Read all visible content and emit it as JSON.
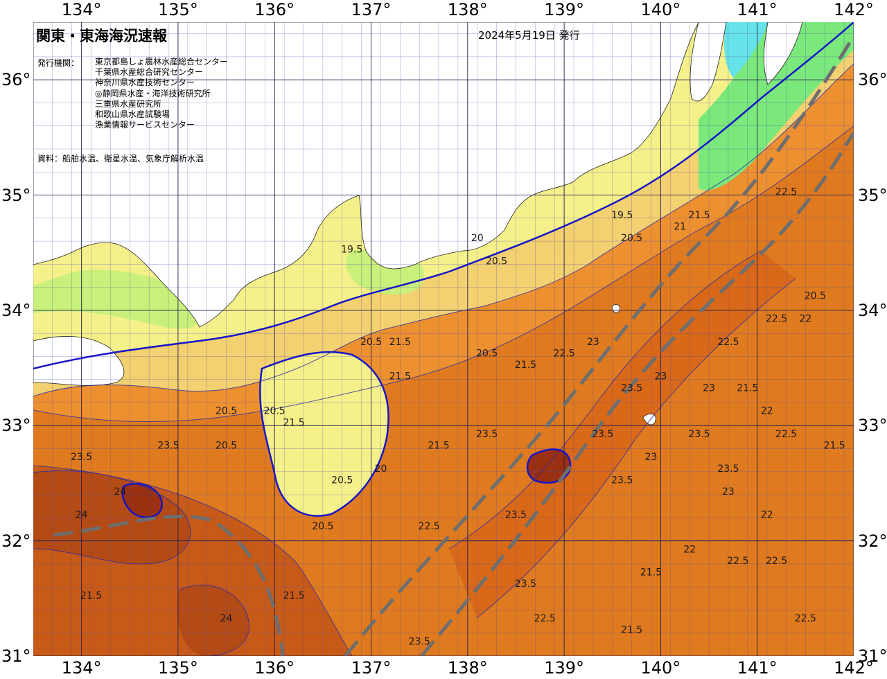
{
  "title": "関東・東海海況速報",
  "issue_date": "2024年5月19日 発行",
  "institutions_label": "発行機関：",
  "institutions": [
    "東京都島しょ農林水産総合センター",
    "千葉県水産総合研究センター",
    "神奈川県水産技術センター",
    "◎静岡県水産・海洋技術研究所",
    "三重県水産研究所",
    "和歌山県水産試験場",
    "漁業情報サービスセンター"
  ],
  "source": "資料：船舶水温、衛星水温、気象庁解析水温",
  "longitude_labels": [
    "134°",
    "135°",
    "136°",
    "137°",
    "138°",
    "139°",
    "140°",
    "141°",
    "142°"
  ],
  "latitude_labels": [
    "36°",
    "35°",
    "34°",
    "33°",
    "32°",
    "31°"
  ],
  "map_extent": {
    "lon_min": 133.5,
    "lon_max": 142.0,
    "lat_min": 31.0,
    "lat_max": 36.5
  },
  "kuroshio_path_description": "dashed gray lines",
  "temperature_labels": [
    {
      "lon": 139.6,
      "lat": 34.8,
      "text": "19.5"
    },
    {
      "lon": 139.7,
      "lat": 34.6,
      "text": "20.5"
    },
    {
      "lon": 138.1,
      "lat": 34.6,
      "text": "20"
    },
    {
      "lon": 138.3,
      "lat": 34.4,
      "text": "20.5"
    },
    {
      "lon": 136.8,
      "lat": 34.5,
      "text": "19.5"
    },
    {
      "lon": 140.2,
      "lat": 34.7,
      "text": "21"
    },
    {
      "lon": 140.4,
      "lat": 34.8,
      "text": "21.5"
    },
    {
      "lon": 141.3,
      "lat": 35.0,
      "text": "22.5"
    },
    {
      "lon": 141.6,
      "lat": 34.1,
      "text": "20.5"
    },
    {
      "lon": 141.2,
      "lat": 33.9,
      "text": "22.5"
    },
    {
      "lon": 140.7,
      "lat": 33.7,
      "text": "22.5"
    },
    {
      "lon": 139.0,
      "lat": 33.6,
      "text": "22.5"
    },
    {
      "lon": 139.3,
      "lat": 33.7,
      "text": "23"
    },
    {
      "lon": 138.6,
      "lat": 33.5,
      "text": "21.5"
    },
    {
      "lon": 138.2,
      "lat": 33.6,
      "text": "20.5"
    },
    {
      "lon": 137.0,
      "lat": 33.7,
      "text": "20.5"
    },
    {
      "lon": 137.3,
      "lat": 33.7,
      "text": "21.5"
    },
    {
      "lon": 137.3,
      "lat": 33.4,
      "text": "21.5"
    },
    {
      "lon": 136.0,
      "lat": 33.1,
      "text": "20.5"
    },
    {
      "lon": 135.5,
      "lat": 33.1,
      "text": "20.5"
    },
    {
      "lon": 135.5,
      "lat": 32.8,
      "text": "20.5"
    },
    {
      "lon": 136.2,
      "lat": 33.0,
      "text": "21.5"
    },
    {
      "lon": 136.7,
      "lat": 32.5,
      "text": "20.5"
    },
    {
      "lon": 137.1,
      "lat": 32.6,
      "text": "20"
    },
    {
      "lon": 137.7,
      "lat": 32.8,
      "text": "21.5"
    },
    {
      "lon": 138.2,
      "lat": 32.9,
      "text": "23.5"
    },
    {
      "lon": 139.4,
      "lat": 32.9,
      "text": "23.5"
    },
    {
      "lon": 139.6,
      "lat": 32.5,
      "text": "23.5"
    },
    {
      "lon": 138.5,
      "lat": 32.2,
      "text": "23.5"
    },
    {
      "lon": 137.6,
      "lat": 32.1,
      "text": "22.5"
    },
    {
      "lon": 136.5,
      "lat": 32.1,
      "text": "20.5"
    },
    {
      "lon": 134.0,
      "lat": 32.2,
      "text": "24"
    },
    {
      "lon": 134.9,
      "lat": 32.8,
      "text": "23.5"
    },
    {
      "lon": 134.0,
      "lat": 32.7,
      "text": "23.5"
    },
    {
      "lon": 134.4,
      "lat": 32.4,
      "text": "24"
    },
    {
      "lon": 134.1,
      "lat": 31.5,
      "text": "21.5"
    },
    {
      "lon": 135.5,
      "lat": 31.3,
      "text": "24"
    },
    {
      "lon": 136.2,
      "lat": 31.5,
      "text": "21.5"
    },
    {
      "lon": 137.5,
      "lat": 31.1,
      "text": "23.5"
    },
    {
      "lon": 138.6,
      "lat": 31.6,
      "text": "23.5"
    },
    {
      "lon": 138.8,
      "lat": 31.3,
      "text": "22.5"
    },
    {
      "lon": 139.7,
      "lat": 31.2,
      "text": "21.5"
    },
    {
      "lon": 139.9,
      "lat": 31.7,
      "text": "21.5"
    },
    {
      "lon": 140.3,
      "lat": 31.9,
      "text": "22"
    },
    {
      "lon": 140.7,
      "lat": 32.4,
      "text": "23"
    },
    {
      "lon": 141.1,
      "lat": 32.2,
      "text": "22"
    },
    {
      "lon": 140.8,
      "lat": 31.8,
      "text": "22.5"
    },
    {
      "lon": 141.2,
      "lat": 31.8,
      "text": "22.5"
    },
    {
      "lon": 141.5,
      "lat": 31.3,
      "text": "22.5"
    },
    {
      "lon": 141.8,
      "lat": 32.8,
      "text": "21.5"
    },
    {
      "lon": 141.3,
      "lat": 32.9,
      "text": "22.5"
    },
    {
      "lon": 140.7,
      "lat": 32.6,
      "text": "23.5"
    },
    {
      "lon": 140.4,
      "lat": 32.9,
      "text": "23.5"
    },
    {
      "lon": 140.0,
      "lat": 33.4,
      "text": "23"
    },
    {
      "lon": 139.7,
      "lat": 33.3,
      "text": "23.5"
    },
    {
      "lon": 140.5,
      "lat": 33.3,
      "text": "23"
    },
    {
      "lon": 140.9,
      "lat": 33.3,
      "text": "21.5"
    },
    {
      "lon": 141.1,
      "lat": 33.1,
      "text": "22"
    },
    {
      "lon": 139.9,
      "lat": 32.7,
      "text": "23"
    },
    {
      "lon": 141.5,
      "lat": 33.9,
      "text": "22"
    }
  ],
  "colors": {
    "lt18": "#3a8aff",
    "c18": "#66e3e8",
    "c19": "#7ae87a",
    "c20": "#c8f07a",
    "c20_5": "#f5f08a",
    "c21": "#f3d070",
    "c21_5": "#f2b24a",
    "c22": "#f0a03a",
    "c22_5": "#ed9030",
    "c23": "#e07a1e",
    "c23_5": "#d96818",
    "c24": "#c85a18",
    "c24_5": "#b44a14",
    "c25": "#9a3010",
    "contour": "#1515c8",
    "kuroshio": "#6e6e6e"
  }
}
